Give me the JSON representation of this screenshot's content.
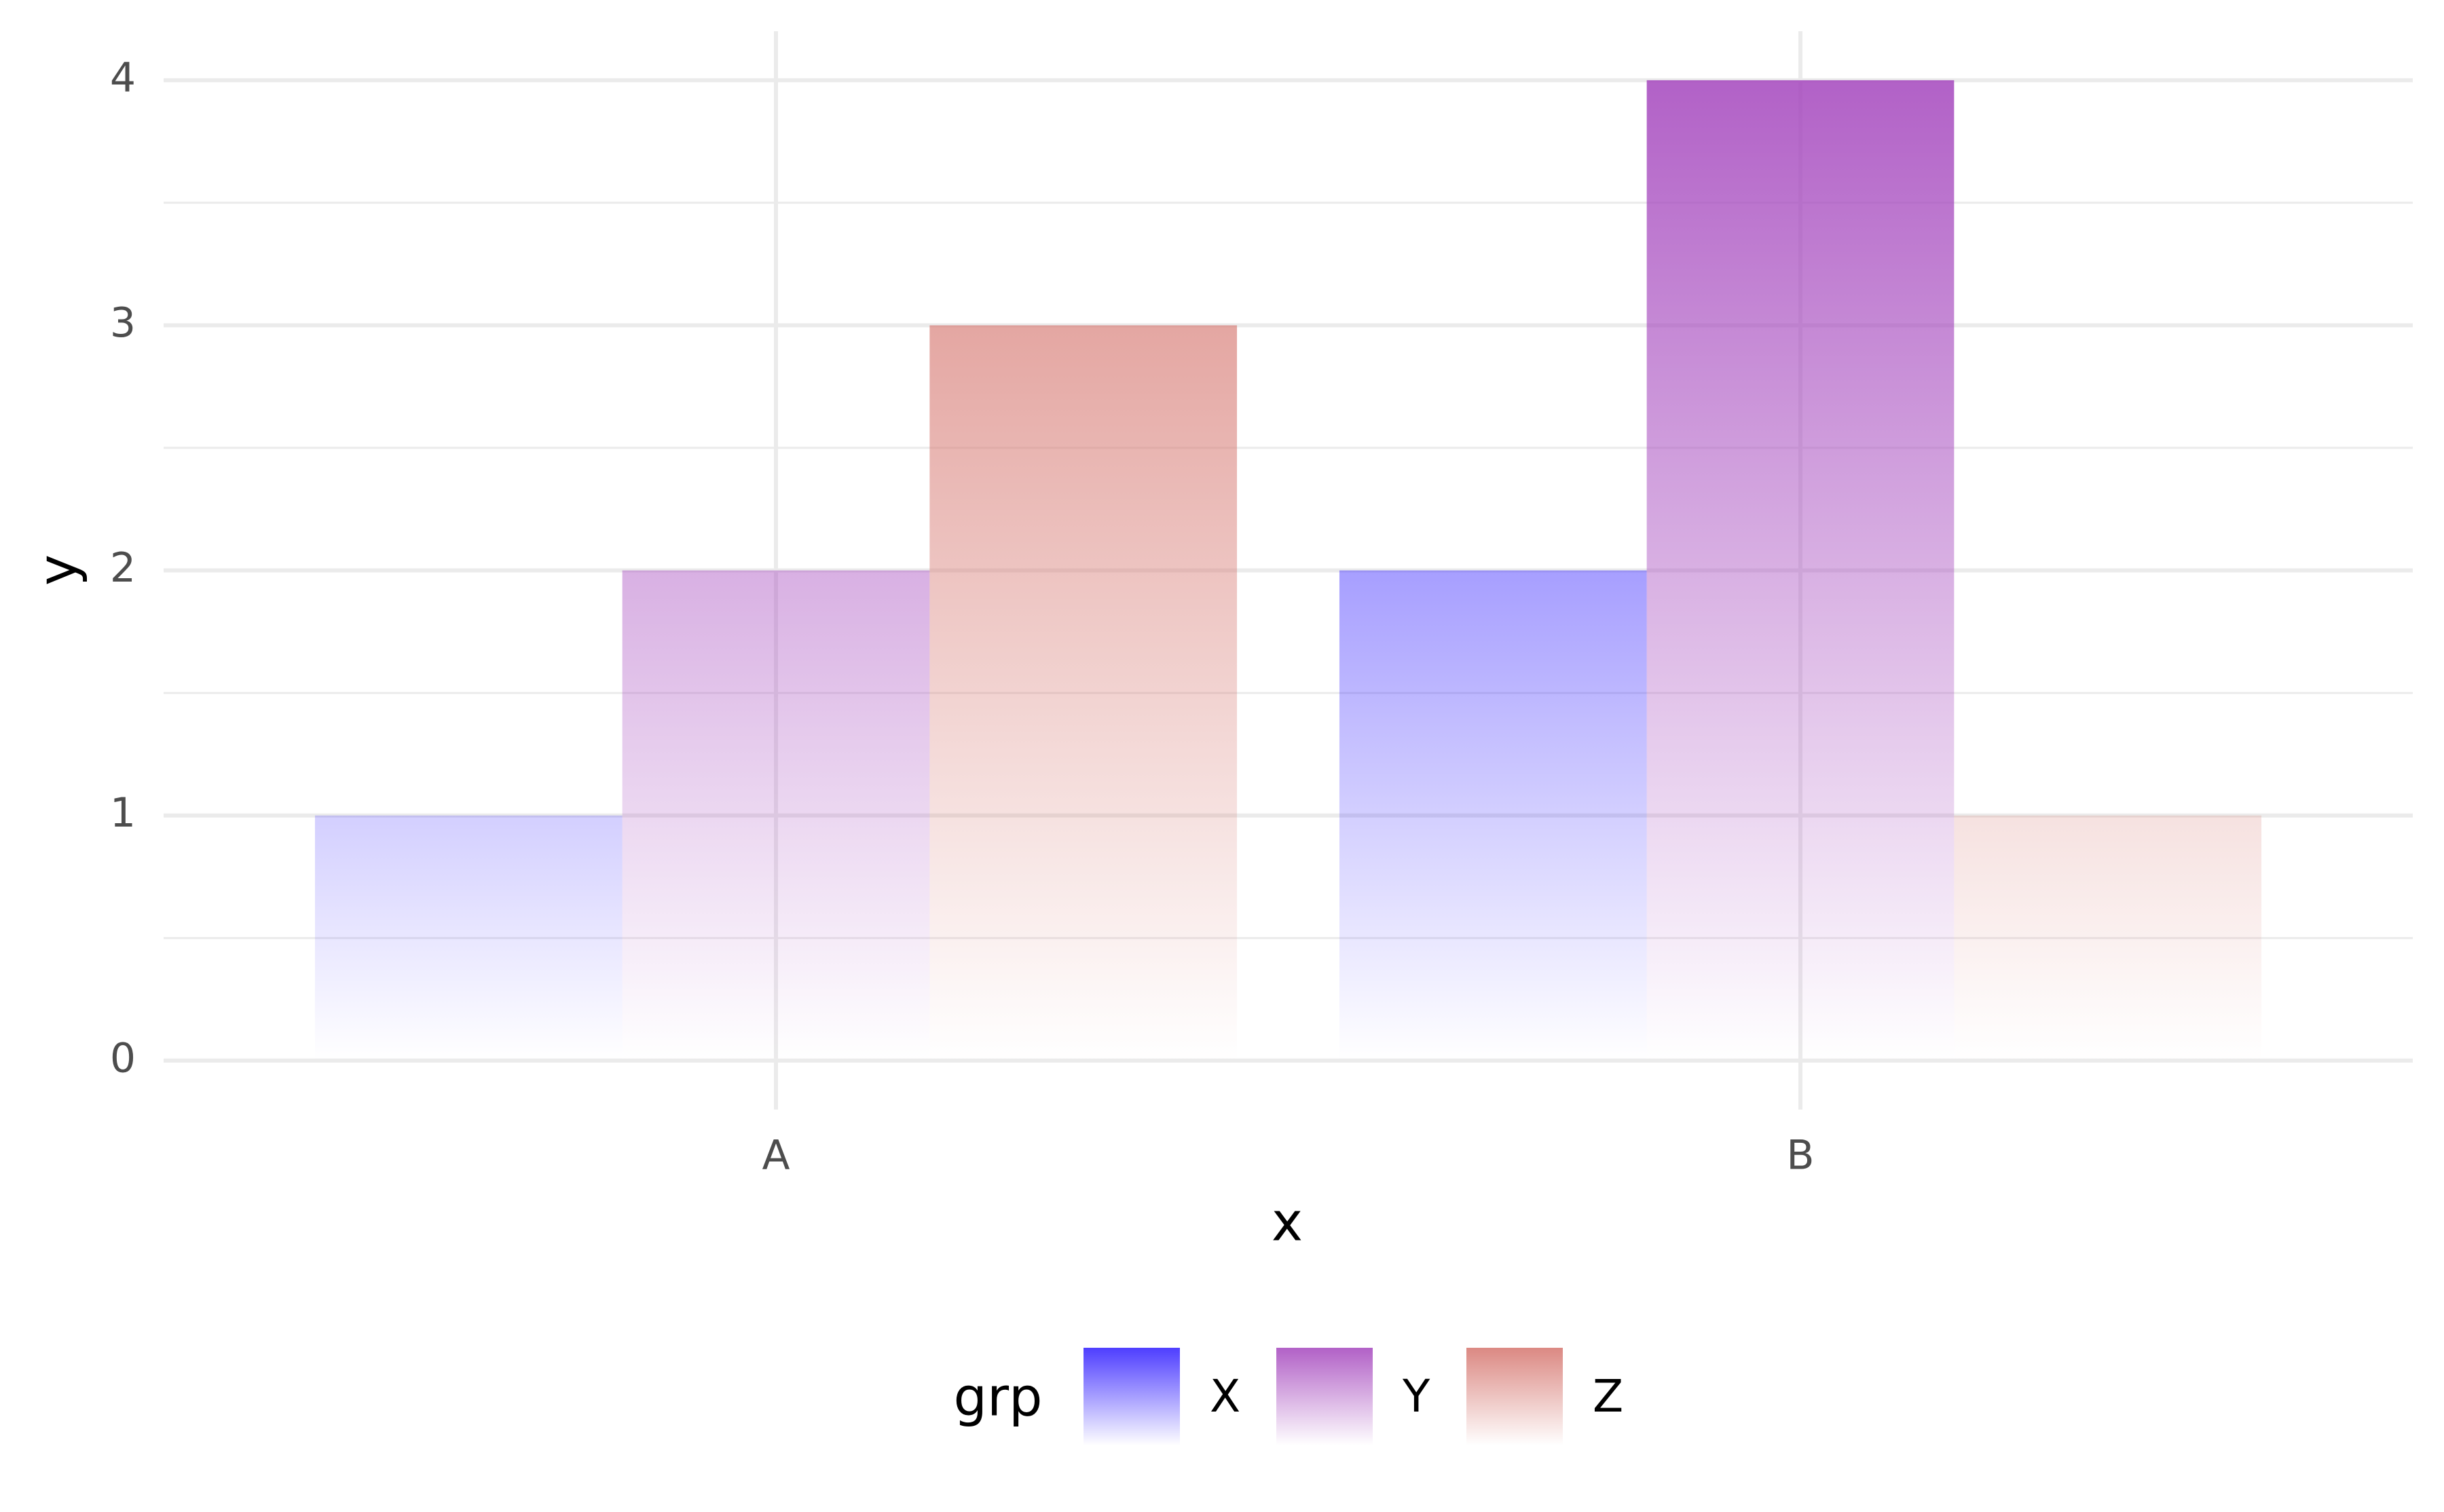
{
  "chart_data": {
    "type": "bar",
    "x_label": "x",
    "y_label": "y",
    "legend_title": "grp",
    "categories": [
      "A",
      "B"
    ],
    "series": [
      {
        "name": "X",
        "color": "#2f1cff",
        "values": [
          1,
          2
        ]
      },
      {
        "name": "Y",
        "color": "#a445bd",
        "values": [
          2,
          4
        ]
      },
      {
        "name": "Z",
        "color": "#d5746d",
        "values": [
          3,
          1
        ]
      }
    ],
    "ylim": [
      -0.2,
      4.2
    ],
    "yticks": [
      0,
      1,
      2,
      3,
      4
    ],
    "grid": true,
    "legend_position": "bottom"
  }
}
